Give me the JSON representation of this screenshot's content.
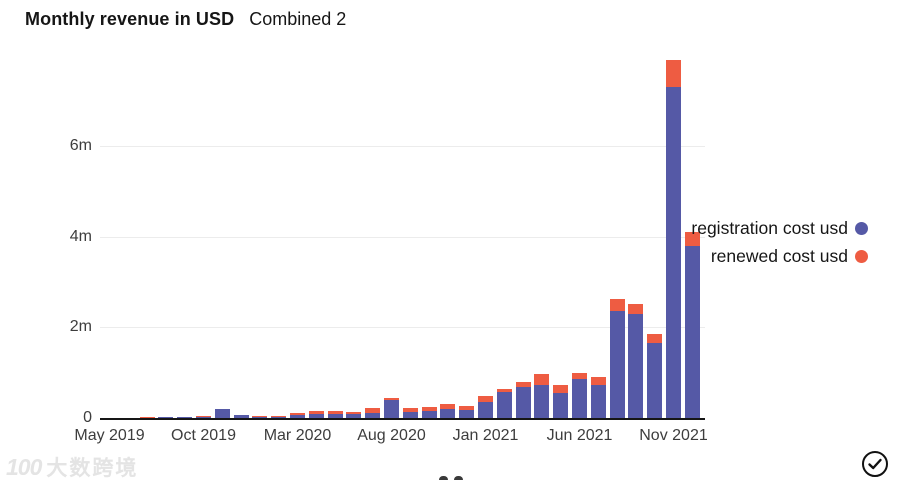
{
  "header": {
    "title": "Monthly revenue in USD",
    "subtitle": "Combined 2"
  },
  "chart_data": {
    "type": "bar",
    "stacked": true,
    "title": "Monthly revenue in USD",
    "subtitle": "Combined 2",
    "unit": "millions USD",
    "categories": [
      "May 2019",
      "Jun 2019",
      "Jul 2019",
      "Aug 2019",
      "Sep 2019",
      "Oct 2019",
      "Nov 2019",
      "Dec 2019",
      "Jan 2020",
      "Feb 2020",
      "Mar 2020",
      "Apr 2020",
      "May 2020",
      "Jun 2020",
      "Jul 2020",
      "Aug 2020",
      "Sep 2020",
      "Oct 2020",
      "Nov 2020",
      "Dec 2020",
      "Jan 2021",
      "Feb 2021",
      "Mar 2021",
      "Apr 2021",
      "May 2021",
      "Jun 2021",
      "Jul 2021",
      "Aug 2021",
      "Sep 2021",
      "Oct 2021",
      "Nov 2021",
      "Dec 2021"
    ],
    "series": [
      {
        "name": "registration cost usd",
        "color": "#5559a6",
        "values": [
          0.01,
          0.01,
          0.01,
          0.015,
          0.02,
          0.03,
          0.19,
          0.06,
          0.03,
          0.03,
          0.07,
          0.09,
          0.09,
          0.08,
          0.12,
          0.4,
          0.13,
          0.15,
          0.2,
          0.17,
          0.35,
          0.57,
          0.68,
          0.73,
          0.55,
          0.87,
          0.72,
          2.35,
          2.3,
          1.65,
          7.3,
          3.78
        ]
      },
      {
        "name": "renewed cost usd",
        "color": "#ee5c42",
        "values": [
          0.0,
          0.0,
          0.005,
          0.005,
          0.005,
          0.005,
          0.01,
          0.01,
          0.01,
          0.02,
          0.05,
          0.06,
          0.06,
          0.05,
          0.1,
          0.05,
          0.08,
          0.09,
          0.1,
          0.1,
          0.13,
          0.07,
          0.11,
          0.24,
          0.18,
          0.13,
          0.18,
          0.28,
          0.22,
          0.2,
          0.58,
          0.33
        ]
      }
    ],
    "x_tick_labels": [
      "May 2019",
      "Oct 2019",
      "Mar 2020",
      "Aug 2020",
      "Jan 2021",
      "Jun 2021",
      "Nov 2021"
    ],
    "x_tick_month_indices": [
      0,
      5,
      10,
      15,
      20,
      25,
      30
    ],
    "y_tick_labels": [
      "0",
      "2m",
      "4m",
      "6m"
    ],
    "y_tick_values": [
      0,
      2,
      4,
      6
    ],
    "ylim": [
      0,
      8
    ],
    "grid": "horizontal",
    "legend_position": "right"
  },
  "legend": {
    "items": [
      {
        "label": "registration cost usd",
        "color": "#5559a6"
      },
      {
        "label": "renewed cost usd",
        "color": "#ee5c42"
      }
    ]
  },
  "watermark": {
    "logo": "100",
    "text": "大数跨境"
  },
  "check_button": {
    "name": "confirm-check"
  },
  "colors": {
    "registration": "#5559a6",
    "renewed": "#ee5c42",
    "axis": "#161616",
    "tick_text": "#3d3d3d",
    "gridline": "#ececec"
  }
}
